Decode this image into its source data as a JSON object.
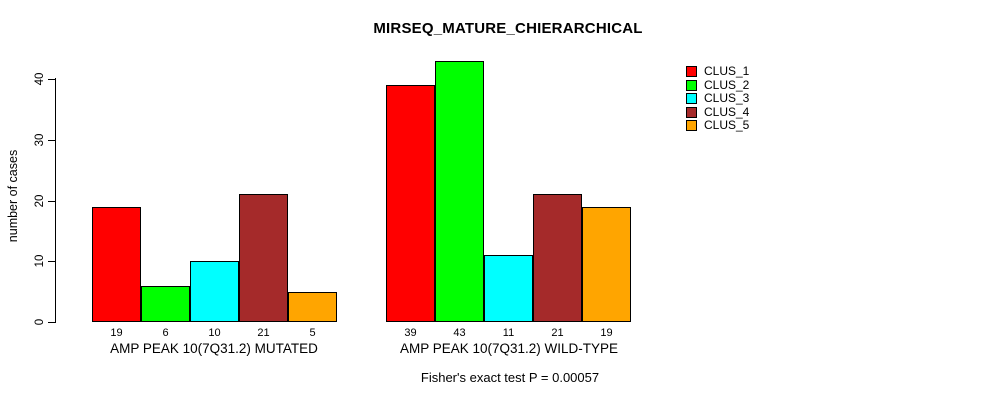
{
  "title": "MIRSEQ_MATURE_CHIERARCHICAL",
  "footer": "Fisher's exact test P = 0.00057",
  "chart_data": {
    "type": "bar",
    "title": "MIRSEQ_MATURE_CHIERARCHICAL",
    "ylabel": "number of cases",
    "xlabel": "",
    "categories": [
      "AMP PEAK 10(7Q31.2) MUTATED",
      "AMP PEAK 10(7Q31.2) WILD-TYPE"
    ],
    "series": [
      {
        "name": "CLUS_1",
        "color": "#FF0000",
        "values": [
          19,
          39
        ]
      },
      {
        "name": "CLUS_2",
        "color": "#00FF00",
        "values": [
          6,
          43
        ]
      },
      {
        "name": "CLUS_3",
        "color": "#00FFFF",
        "values": [
          10,
          11
        ]
      },
      {
        "name": "CLUS_4",
        "color": "#A52A2A",
        "values": [
          21,
          21
        ]
      },
      {
        "name": "CLUS_5",
        "color": "#FFA500",
        "values": [
          5,
          19
        ]
      }
    ],
    "bar_value_labels": [
      [
        19,
        6,
        10,
        21,
        5
      ],
      [
        39,
        43,
        11,
        21,
        19
      ]
    ],
    "yticks": [
      0,
      10,
      20,
      30,
      40
    ],
    "ylim": [
      0,
      43
    ],
    "grid": false,
    "legend_position": "top-right",
    "annotation": "Fisher's exact test P = 0.00057"
  },
  "legend": {
    "items": [
      {
        "label": "CLUS_1",
        "color": "#FF0000"
      },
      {
        "label": "CLUS_2",
        "color": "#00FF00"
      },
      {
        "label": "CLUS_3",
        "color": "#00FFFF"
      },
      {
        "label": "CLUS_4",
        "color": "#A52A2A"
      },
      {
        "label": "CLUS_5",
        "color": "#FFA500"
      }
    ]
  }
}
